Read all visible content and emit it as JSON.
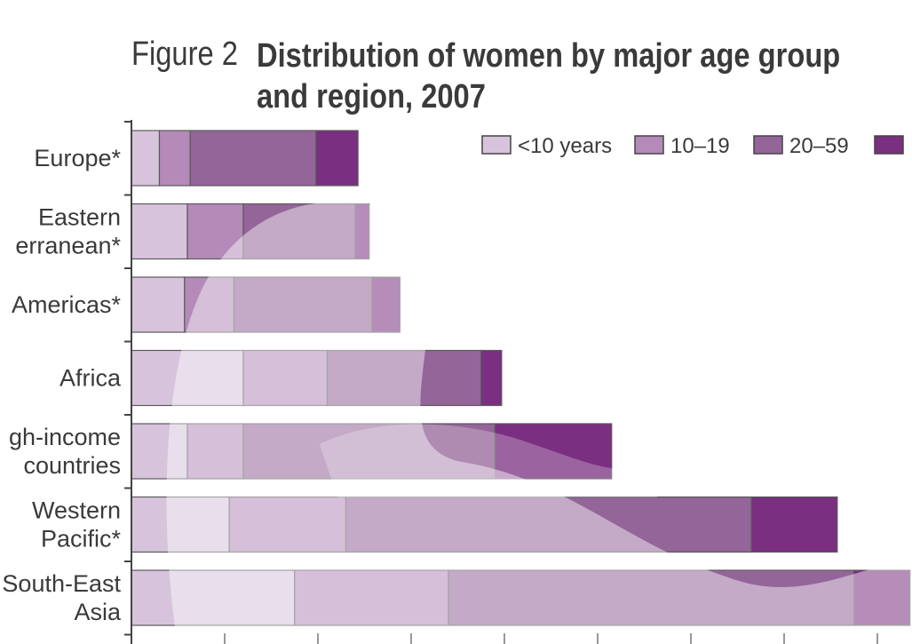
{
  "figure": {
    "label": "Figure 2",
    "title_line1": "Distribution of women by major age group",
    "title_line2": "and region, 2007"
  },
  "chart_data": {
    "type": "bar",
    "orientation": "horizontal",
    "stacked": true,
    "title": "Distribution of women by major age group and region, 2007",
    "categories": [
      [
        "Europe*"
      ],
      [
        "Eastern",
        "erranean*"
      ],
      [
        "Americas*"
      ],
      [
        "Africa"
      ],
      [
        "gh-income",
        "countries"
      ],
      [
        "Western",
        "Pacific*"
      ],
      [
        "South-East",
        "Asia"
      ]
    ],
    "series": [
      {
        "name": "<10 years",
        "color": "#d7c4dc",
        "values": [
          30,
          60,
          57,
          120,
          60,
          105,
          175
        ]
      },
      {
        "name": "10–19",
        "color": "#b48ab8",
        "values": [
          33,
          60,
          53,
          90,
          60,
          125,
          165
        ]
      },
      {
        "name": "20–59",
        "color": "#946599",
        "values": [
          135,
          120,
          148,
          165,
          270,
          435,
          435
        ]
      },
      {
        "name": "",
        "color": "#7a2f80",
        "values": [
          45,
          15,
          30,
          22,
          125,
          92,
          60
        ]
      }
    ],
    "xlim": [
      0,
      820
    ],
    "legend_position": "top-right",
    "grid": false
  }
}
